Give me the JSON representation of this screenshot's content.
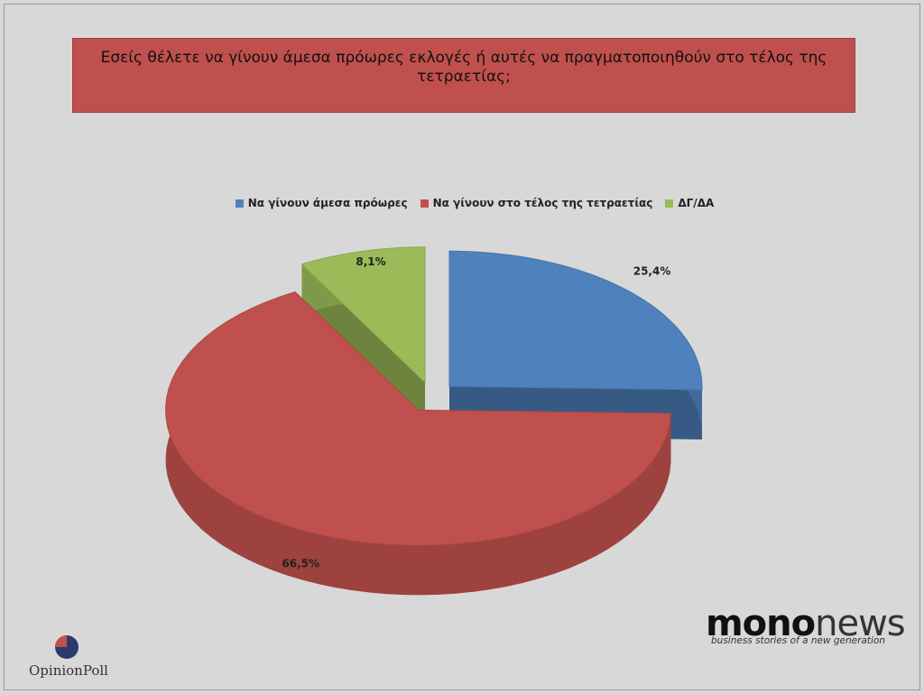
{
  "chart_data": {
    "type": "pie",
    "title": "Εσείς θέλετε να γίνουν άμεσα πρόωρες εκλογές ή αυτές να πραγματοποιηθούν στο τέλος της τετραετίας;",
    "categories": [
      "Να γίνουν άμεσα πρόωρες",
      "Να γίνουν στο τέλος της τετραετίας",
      "ΔΓ/ΔΑ"
    ],
    "values": [
      25.4,
      66.5,
      8.1
    ],
    "value_labels": [
      "25,4%",
      "66,5%",
      "8,1%"
    ],
    "colors": [
      "#4f81bd",
      "#c0504d",
      "#9bbb59"
    ],
    "legend": "top"
  },
  "footer": {
    "left_logo": "OpinionPoll",
    "brand_bold": "mono",
    "brand_light": "news",
    "tagline": "business stories of a new generation"
  }
}
